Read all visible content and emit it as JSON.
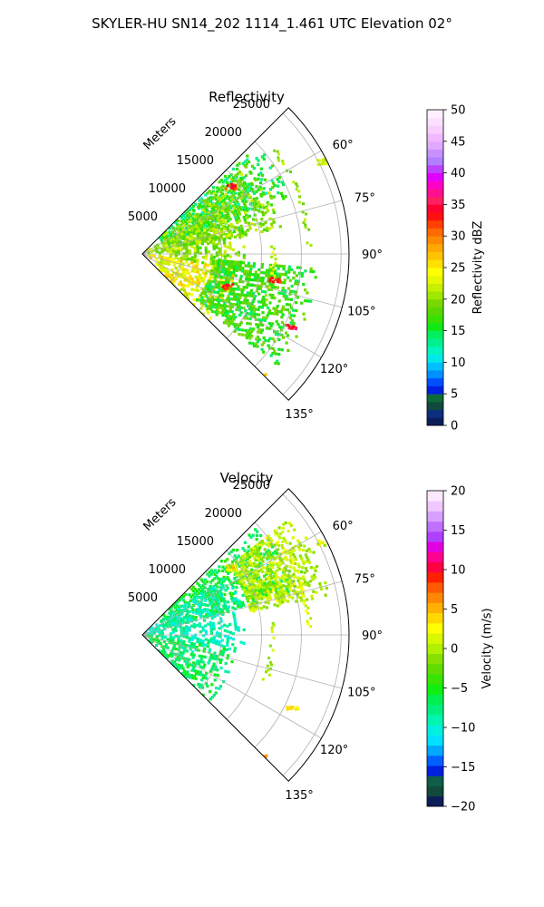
{
  "figure": {
    "suptitle": "SKYLER-HU  SN14_202  1114_1.461 UTC Elevation 02°"
  },
  "palette": {
    "grid": "#b0b0b0",
    "frame": "#000000",
    "background": "#ffffff"
  },
  "chart_data": [
    {
      "type": "heatmap",
      "subtype": "polar-sector-ppi",
      "title": "Reflectivity",
      "radial_label": "Meters",
      "range_ticks": [
        5000,
        10000,
        15000,
        20000,
        25000
      ],
      "range_tick_labels": [
        "5000",
        "10000",
        "15000",
        "20000",
        "25000"
      ],
      "rlim": [
        0,
        26000
      ],
      "azimuth_range_deg": [
        45,
        135
      ],
      "azimuth_ticks": [
        "60°",
        "75°",
        "90°",
        "105°",
        "120°",
        "135°"
      ],
      "grid": true,
      "colorbar": {
        "label": "Reflectivity dBZ",
        "min": 0,
        "max": 50,
        "ticks": [
          0,
          5,
          10,
          15,
          20,
          25,
          30,
          35,
          40,
          45,
          50
        ],
        "ticklabels": [
          "0",
          "5",
          "10",
          "15",
          "20",
          "25",
          "30",
          "35",
          "40",
          "45",
          "50"
        ],
        "scheme": "reflectivity"
      },
      "field_summary": [
        {
          "az_from": 47,
          "az_to": 70,
          "r_from": 3000,
          "r_to": 20000,
          "value": 15
        },
        {
          "az_from": 50,
          "az_to": 80,
          "r_from": 3000,
          "r_to": 18000,
          "value": 19
        },
        {
          "az_from": 60,
          "az_to": 100,
          "r_from": 500,
          "r_to": 13000,
          "value": 20
        },
        {
          "az_from": 100,
          "az_to": 135,
          "r_from": 500,
          "r_to": 12000,
          "value": 24
        },
        {
          "az_from": 95,
          "az_to": 130,
          "r_from": 9000,
          "r_to": 22000,
          "value": 17
        }
      ],
      "features": [
        {
          "kind": "arc",
          "r": 21000,
          "az_from": 52,
          "az_to": 88,
          "value": 20
        },
        {
          "kind": "arc",
          "r": 16500,
          "az_from": 85,
          "az_to": 112,
          "value": 22
        },
        {
          "kind": "cluster",
          "r": 21000,
          "az": 116,
          "value": 35
        },
        {
          "kind": "cluster",
          "r": 11500,
          "az": 111,
          "value": 33
        },
        {
          "kind": "cluster",
          "r": 25500,
          "az": 63,
          "value": 22
        },
        {
          "kind": "cluster",
          "r": 21500,
          "az": 136,
          "value": 25
        },
        {
          "kind": "cluster",
          "r": 14000,
          "az": 53,
          "value": 33
        },
        {
          "kind": "cluster",
          "r": 17000,
          "az": 101,
          "value": 33
        }
      ]
    },
    {
      "type": "heatmap",
      "subtype": "polar-sector-ppi",
      "title": "Velocity",
      "radial_label": "Meters",
      "range_ticks": [
        5000,
        10000,
        15000,
        20000,
        25000
      ],
      "range_tick_labels": [
        "5000",
        "10000",
        "15000",
        "20000",
        "25000"
      ],
      "rlim": [
        0,
        26000
      ],
      "azimuth_range_deg": [
        45,
        135
      ],
      "azimuth_ticks": [
        "60°",
        "75°",
        "90°",
        "105°",
        "120°",
        "135°"
      ],
      "grid": true,
      "colorbar": {
        "label": "Velocity (m/s)",
        "min": -20,
        "max": 20,
        "ticks": [
          -20,
          -15,
          -10,
          -5,
          0,
          5,
          10,
          15,
          20
        ],
        "ticklabels": [
          "−20",
          "−15",
          "−10",
          "−5",
          "0",
          "5",
          "10",
          "15",
          "20"
        ],
        "scheme": "velocity"
      },
      "field_summary": [
        {
          "az_from": 47,
          "az_to": 75,
          "r_from": 3000,
          "r_to": 20000,
          "value": -6
        },
        {
          "az_from": 55,
          "az_to": 100,
          "r_from": 500,
          "r_to": 13000,
          "value": -9
        },
        {
          "az_from": 100,
          "az_to": 135,
          "r_from": 500,
          "r_to": 12000,
          "value": -7
        },
        {
          "az_from": 52,
          "az_to": 78,
          "r_from": 14000,
          "r_to": 24000,
          "value": 0
        }
      ],
      "features": [
        {
          "kind": "arc",
          "r": 21000,
          "az_from": 52,
          "az_to": 88,
          "value": 1
        },
        {
          "kind": "arc",
          "r": 16500,
          "az_from": 85,
          "az_to": 112,
          "value": 0
        },
        {
          "kind": "cluster",
          "r": 21000,
          "az": 116,
          "value": 3
        },
        {
          "kind": "cluster",
          "r": 25500,
          "az": 63,
          "value": 1
        },
        {
          "kind": "cluster",
          "r": 21500,
          "az": 136,
          "value": 5
        },
        {
          "kind": "cluster",
          "r": 14000,
          "az": 53,
          "value": 3
        }
      ]
    }
  ]
}
